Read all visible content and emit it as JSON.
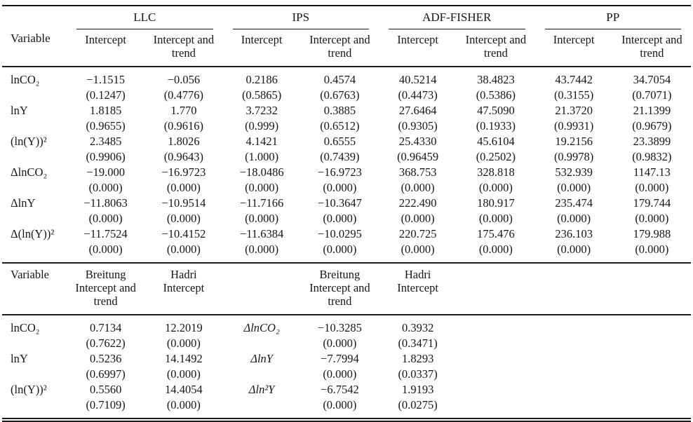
{
  "panel1": {
    "variable_header": "Variable",
    "groups": [
      "LLC",
      "IPS",
      "ADF-FISHER",
      "PP"
    ],
    "subheader_intercept": "Intercept",
    "subheader_intercept_trend": "Intercept and trend",
    "rows": [
      {
        "variable": "lnCO₂",
        "values": [
          "−1.1515",
          "−0.056",
          "0.2186",
          "0.4574",
          "40.5214",
          "38.4823",
          "43.7442",
          "34.7054"
        ],
        "pvalues": [
          "(0.1247)",
          "(0.4776)",
          "(0.5865)",
          "(0.6763)",
          "(0.4473)",
          "(0.5386)",
          "(0.3155)",
          "(0.7071)"
        ]
      },
      {
        "variable": "lnY",
        "values": [
          "1.8185",
          "1.770",
          "3.7232",
          "0.3885",
          "27.6464",
          "47.5090",
          "21.3720",
          "21.1399"
        ],
        "pvalues": [
          "(0.9655)",
          "(0.9616)",
          "(0.999)",
          "(0.6512)",
          "(0.9305)",
          "(0.1933)",
          "(0.9931)",
          "(0.9679)"
        ]
      },
      {
        "variable": "(ln(Y))²",
        "values": [
          "2.3485",
          "1.8026",
          "4.1421",
          "0.6555",
          "25.4330",
          "45.6104",
          "19.2156",
          "23.3899"
        ],
        "pvalues": [
          "(0.9906)",
          "(0.9643)",
          "(1.000)",
          "(0.7439)",
          "(0.96459",
          "(0.2502)",
          "(0.9978)",
          "(0.9832)"
        ]
      },
      {
        "variable": "ΔlnCO₂",
        "values": [
          "−19.000",
          "−16.9723",
          "−18.0486",
          "−16.9723",
          "368.753",
          "328.818",
          "532.939",
          "1147.13"
        ],
        "pvalues": [
          "(0.000)",
          "(0.000)",
          "(0.000)",
          "(0.000)",
          "(0.000)",
          "(0.000)",
          "(0.000)",
          "(0.000)"
        ]
      },
      {
        "variable": "ΔlnY",
        "values": [
          "−11.8063",
          "−10.9514",
          "−11.7166",
          "−10.3647",
          "222.490",
          "180.917",
          "235.474",
          "179.744"
        ],
        "pvalues": [
          "(0.000)",
          "(0.000)",
          "(0.000)",
          "(0.000)",
          "(0.000)",
          "(0.000)",
          "(0.000)",
          "(0.000)"
        ]
      },
      {
        "variable": "Δ(ln(Y))²",
        "values": [
          "−11.7524",
          "−10.4152",
          "−11.6384",
          "−10.0295",
          "220.725",
          "175.476",
          "236.103",
          "179.988"
        ],
        "pvalues": [
          "(0.000)",
          "(0.000)",
          "(0.000)",
          "(0.000)",
          "(0.000)",
          "(0.000)",
          "(0.000)",
          "(0.000)"
        ]
      }
    ]
  },
  "panel2": {
    "variable_header": "Variable",
    "breitung_header": "Breitung\nIntercept and\ntrend",
    "hadri_header": "Hadri\nIntercept",
    "rows": [
      {
        "variable": "lnCO₂",
        "breitung_value": "0.7134",
        "breitung_p": "(0.7622)",
        "hadri_value": "12.2019",
        "hadri_p": "(0.000)",
        "delta_variable": "ΔlnCO₂",
        "delta_breitung_value": "−10.3285",
        "delta_breitung_p": "(0.000)",
        "delta_hadri_value": "0.3932",
        "delta_hadri_p": "(0.3471)"
      },
      {
        "variable": "lnY",
        "breitung_value": "0.5236",
        "breitung_p": "(0.6997)",
        "hadri_value": "14.1492",
        "hadri_p": "(0.000)",
        "delta_variable": "ΔlnY",
        "delta_breitung_value": "−7.7994",
        "delta_breitung_p": "(0.000)",
        "delta_hadri_value": "1.8293",
        "delta_hadri_p": "(0.0337)"
      },
      {
        "variable": "(ln(Y))²",
        "breitung_value": "0.5560",
        "breitung_p": "(0.7109)",
        "hadri_value": "14.4054",
        "hadri_p": "(0.000)",
        "delta_variable": "Δln²Y",
        "delta_breitung_value": "−6.7542",
        "delta_breitung_p": "(0.000)",
        "delta_hadri_value": "1.9193",
        "delta_hadri_p": "(0.0275)"
      }
    ]
  }
}
